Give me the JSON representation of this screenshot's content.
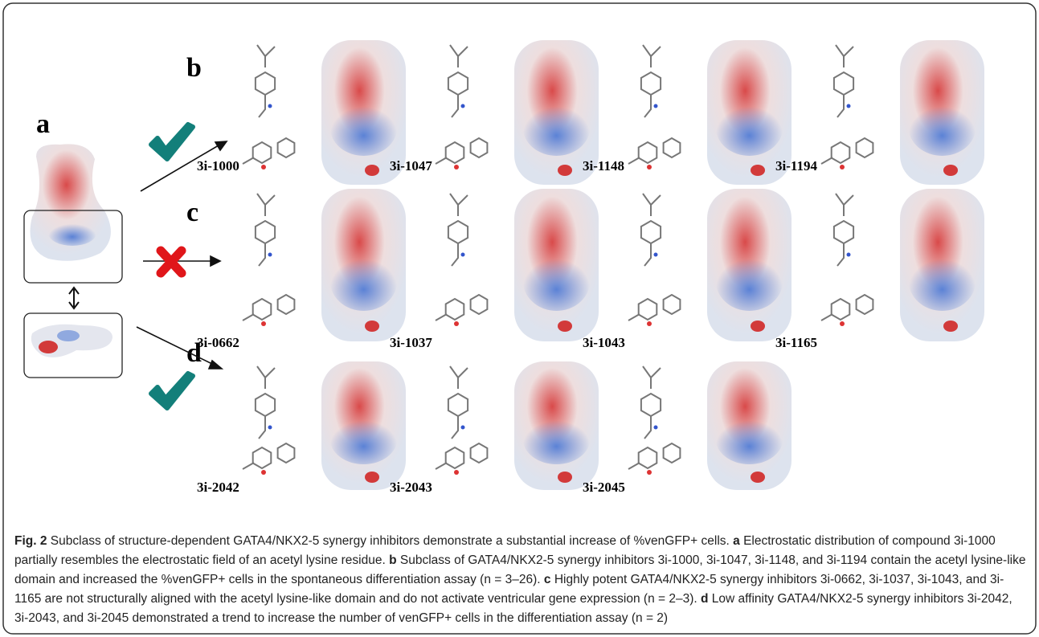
{
  "panels": {
    "a": "a",
    "b": "b",
    "c": "c",
    "d": "d"
  },
  "compounds": {
    "b": [
      "3i-1000",
      "3i-1047",
      "3i-1148",
      "3i-1194"
    ],
    "c": [
      "3i-0662",
      "3i-1037",
      "3i-1043",
      "3i-1165"
    ],
    "d": [
      "3i-2042",
      "3i-2043",
      "3i-2045"
    ]
  },
  "caption": {
    "figure_label": "Fig. 2",
    "title": "Subclass of structure-dependent GATA4/NKX2-5 synergy inhibitors demonstrate a substantial increase of %venGFP+ cells.",
    "parts": [
      {
        "letter": "a",
        "text": "Electrostatic distribution of compound 3i-1000 partially resembles the electrostatic field of an acetyl lysine residue."
      },
      {
        "letter": "b",
        "text": "Subclass of GATA4/NKX2-5 synergy inhibitors 3i-1000, 3i-1047, 3i-1148, and 3i-1194 contain the acetyl lysine-like domain and increased the %venGFP+ cells in the spontaneous differentiation assay (n = 3–26)."
      },
      {
        "letter": "c",
        "text": "Highly potent GATA4/NKX2-5 synergy inhibitors 3i-0662, 3i-1037, 3i-1043, and 3i-1165 are not structurally aligned with the acetyl lysine-like domain and do not activate ventricular gene expression (n = 2–3)."
      },
      {
        "letter": "d",
        "text": "Low affinity GATA4/NKX2-5 synergy inhibitors 3i-2042, 3i-2043, and 3i-2045 demonstrated a trend to increase the number of venGFP+ cells in the differentiation assay (n = 2)"
      }
    ]
  }
}
